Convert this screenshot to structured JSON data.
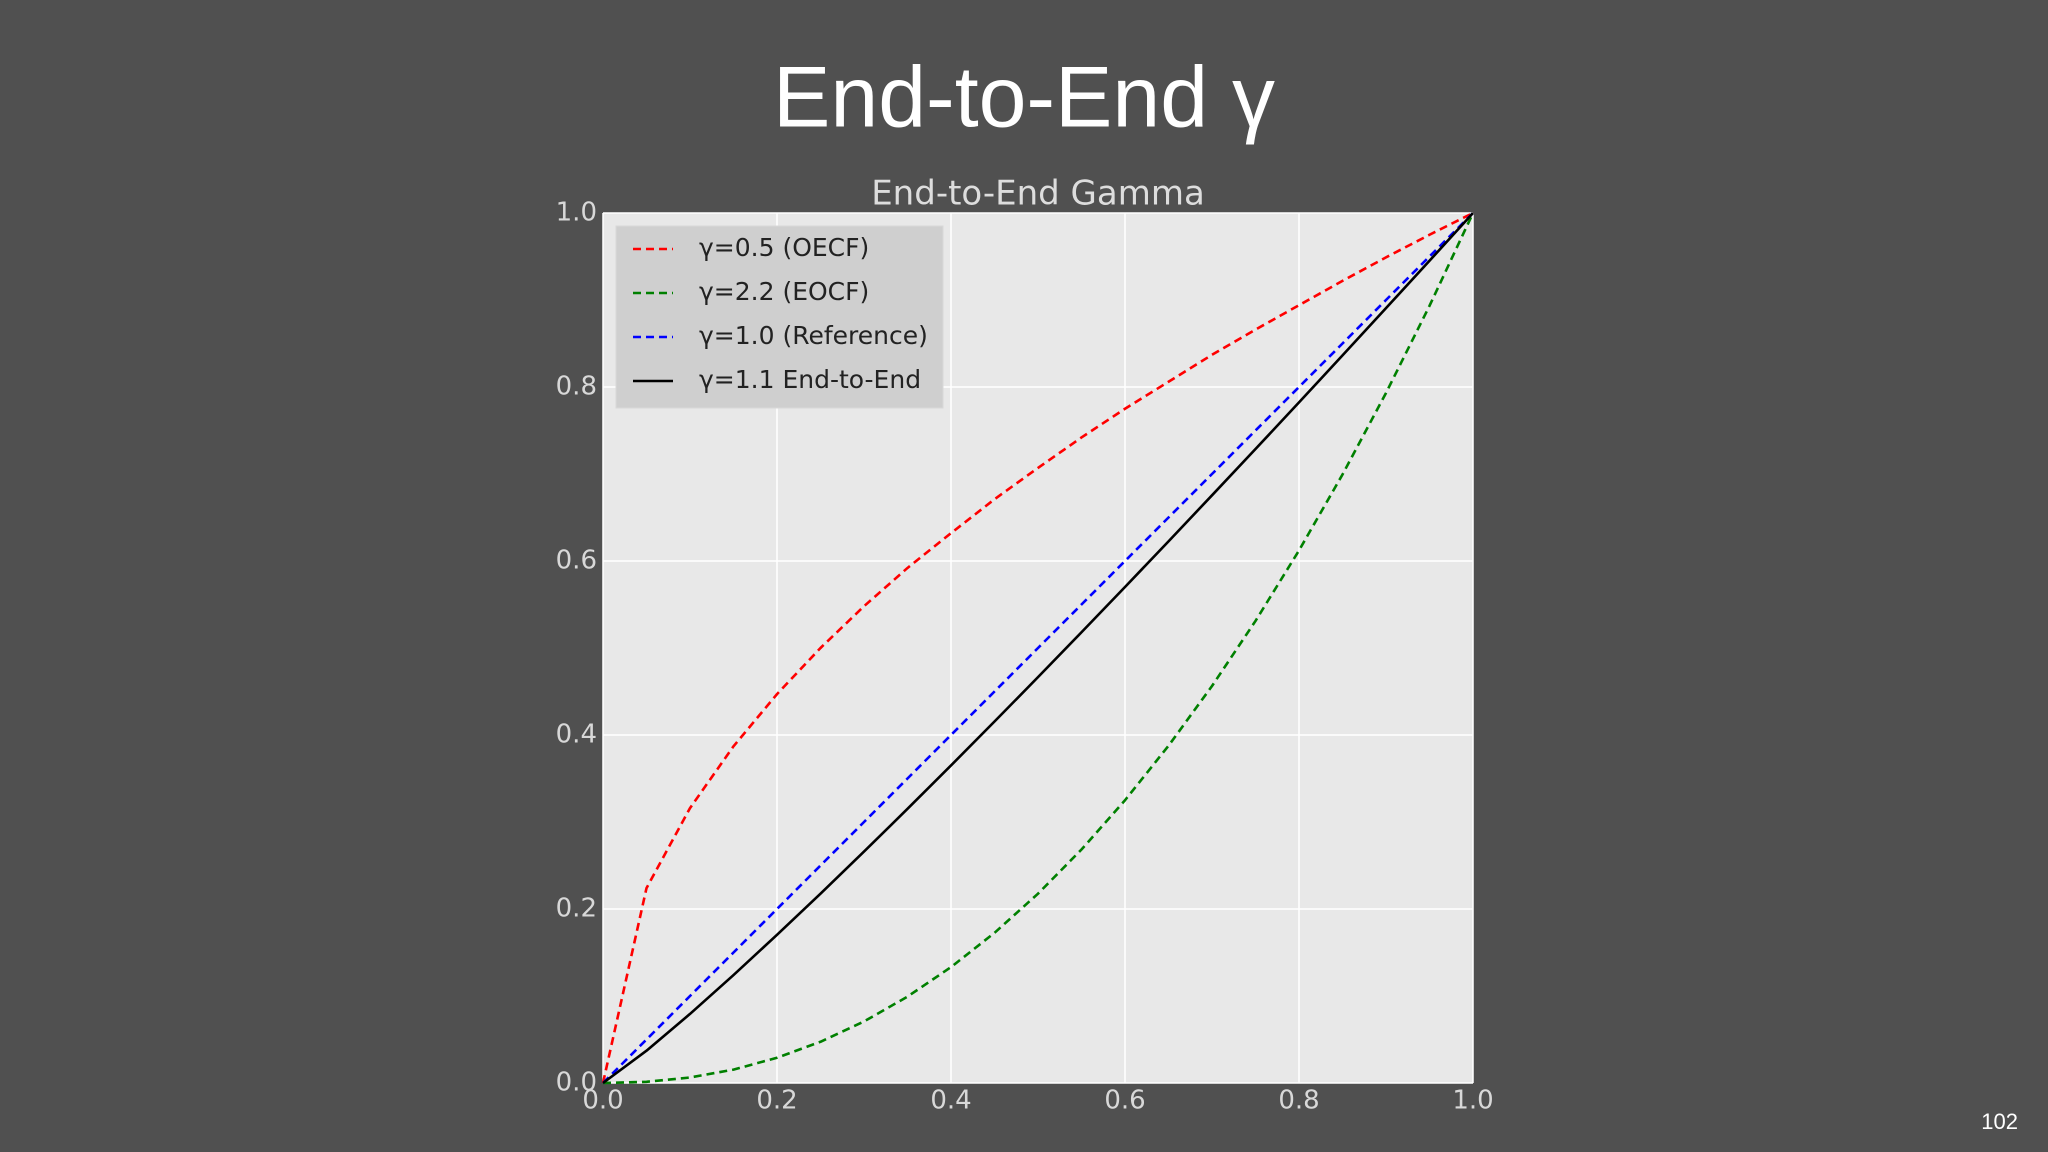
{
  "slide_title": "End-to-End γ",
  "page_number": "102",
  "chart_data": {
    "type": "line",
    "title": "End-to-End Gamma",
    "x": [
      0,
      0.05,
      0.1,
      0.15,
      0.2,
      0.25,
      0.3,
      0.35,
      0.4,
      0.45,
      0.5,
      0.55,
      0.6,
      0.65,
      0.7,
      0.75,
      0.8,
      0.85,
      0.9,
      0.95,
      1.0
    ],
    "series": [
      {
        "name": "γ=0.5 (OECF)",
        "color": "#ff0000",
        "dash": true,
        "values": [
          0,
          0.224,
          0.316,
          0.387,
          0.447,
          0.5,
          0.548,
          0.592,
          0.632,
          0.671,
          0.707,
          0.742,
          0.775,
          0.806,
          0.837,
          0.866,
          0.894,
          0.922,
          0.949,
          0.975,
          1
        ]
      },
      {
        "name": "γ=2.2 (EOCF)",
        "color": "#008000",
        "dash": true,
        "values": [
          0,
          0.00137,
          0.00631,
          0.0154,
          0.029,
          0.0474,
          0.0707,
          0.0993,
          0.1332,
          0.1726,
          0.2176,
          0.2684,
          0.325,
          0.3876,
          0.4563,
          0.5311,
          0.6121,
          0.6994,
          0.7931,
          0.8933,
          1
        ]
      },
      {
        "name": "γ=1.0 (Reference)",
        "color": "#0000ff",
        "dash": true,
        "values": [
          0,
          0.05,
          0.1,
          0.15,
          0.2,
          0.25,
          0.3,
          0.35,
          0.4,
          0.45,
          0.5,
          0.55,
          0.6,
          0.65,
          0.7,
          0.75,
          0.8,
          0.85,
          0.9,
          0.95,
          1
        ]
      },
      {
        "name": "γ=1.1 End-to-End",
        "color": "#000000",
        "dash": false,
        "values": [
          0,
          0.0371,
          0.0794,
          0.1241,
          0.1703,
          0.2176,
          0.266,
          0.3151,
          0.365,
          0.4155,
          0.4665,
          0.5181,
          0.5701,
          0.6226,
          0.6755,
          0.7287,
          0.7823,
          0.8363,
          0.8906,
          0.9451,
          1
        ]
      }
    ],
    "xlim": [
      0,
      1
    ],
    "ylim": [
      0,
      1
    ],
    "xticks": [
      {
        "value": 0,
        "label": "0.0"
      },
      0.2,
      0.4,
      0.6,
      0.8,
      {
        "value": 1,
        "label": "1.0"
      }
    ],
    "yticks": [
      {
        "value": 0,
        "label": "0.0"
      },
      0.2,
      0.4,
      0.6,
      0.8,
      {
        "value": 1,
        "label": "1.0"
      }
    ],
    "grid": true,
    "legend": "upper-left"
  }
}
